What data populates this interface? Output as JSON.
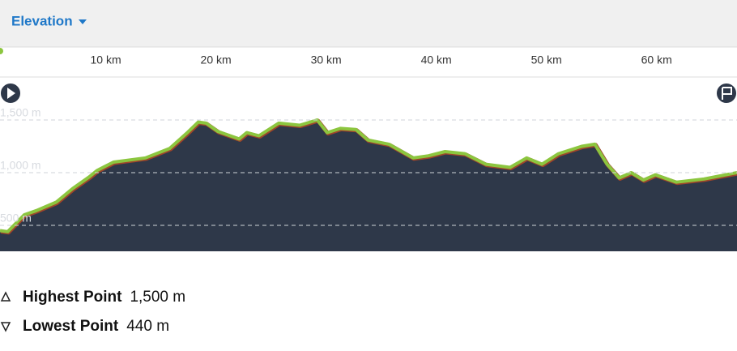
{
  "header": {
    "title": "Elevation"
  },
  "chart_data": {
    "type": "area",
    "x": [
      0.4,
      1.1,
      2.6,
      3.7,
      5.5,
      7.0,
      8.5,
      9.2,
      10.7,
      13.6,
      15.8,
      17.3,
      18.4,
      19.1,
      20.2,
      22.1,
      22.8,
      23.9,
      25.7,
      27.6,
      29.2,
      30.1,
      31.3,
      32.7,
      33.8,
      35.7,
      37.9,
      39.3,
      40.8,
      42.6,
      44.5,
      46.7,
      48.2,
      49.6,
      51.1,
      53.2,
      54.4,
      55.5,
      56.6,
      57.7,
      58.8,
      59.9,
      61.8,
      64.3,
      67.3
    ],
    "values": [
      450,
      440,
      600,
      640,
      720,
      850,
      960,
      1020,
      1100,
      1140,
      1230,
      1370,
      1480,
      1470,
      1390,
      1320,
      1380,
      1350,
      1470,
      1450,
      1500,
      1380,
      1420,
      1410,
      1310,
      1270,
      1140,
      1160,
      1200,
      1180,
      1080,
      1050,
      1140,
      1080,
      1180,
      1250,
      1270,
      1080,
      950,
      1000,
      930,
      980,
      910,
      940,
      1000
    ],
    "color": "#8cc63f",
    "fill": "#2e3849",
    "xlim": [
      0.4,
      67.3
    ],
    "ylim": [
      254,
      1908
    ],
    "xticks": [
      {
        "value": 10,
        "label": "10 km"
      },
      {
        "value": 20,
        "label": "20 km"
      },
      {
        "value": 30,
        "label": "30 km"
      },
      {
        "value": 40,
        "label": "40 km"
      },
      {
        "value": 50,
        "label": "50 km"
      },
      {
        "value": 60,
        "label": "60 km"
      }
    ],
    "yticks": [
      {
        "value": 500,
        "label": "500 m"
      },
      {
        "value": 1000,
        "label": "1,000 m"
      },
      {
        "value": 1500,
        "label": "1,500 m"
      }
    ],
    "grid": true
  },
  "stats": [
    {
      "label": "Highest Point",
      "value": "1,500 m"
    },
    {
      "label": "Lowest Point",
      "value": "440 m"
    }
  ]
}
